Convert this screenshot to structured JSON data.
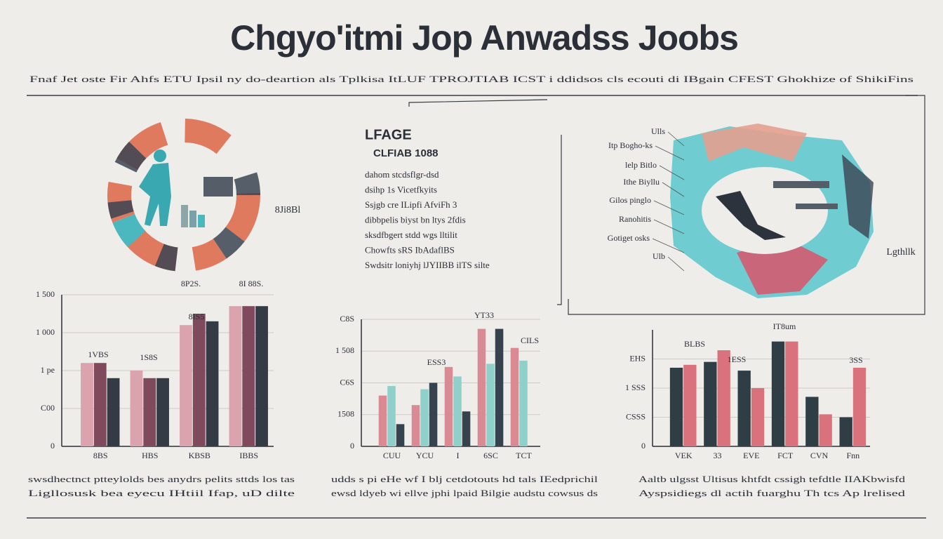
{
  "header": {
    "title": "Chgyo'itmi Jop Anwadss Joobs",
    "subtitle": "Fnaf Jet oste Fir Ahfs ETU Ipsil ny do-deartion als Tplkisa ItLUF TPROJTIAB ICST i ddidsos cls ecouti di IBgain CFEST Ghokhize of ShikiFins"
  },
  "text_block": {
    "heading": "LFAGE",
    "subheading": "CLFIAB 1088",
    "lines": [
      "dahom stcdsflgr-dsd",
      "dsihp 1s Vicetfkyits",
      "Ssjgb cre ILipfi AfviFh 3",
      "dibbpelis biyst bn ltys 2fdis",
      "sksdfbgert stdd wgs lltilit",
      "Chowfts sRS IbAdaflBS",
      "Swdsitr loniyhj lJYIIBB ilTS silte"
    ]
  },
  "illustration": {
    "label": "8Ji8Bl"
  },
  "diagram": {
    "labels": [
      "Ulls",
      "Itp Bogho-ks",
      "lelp Bitlo",
      "Ithe Biyllu",
      "Gilos pinglo",
      "Ranohitis",
      "Gotiget osks",
      "Ulb"
    ],
    "side_label": "Lgthllk"
  },
  "chart_data": [
    {
      "type": "bar",
      "annotations": [
        "8P2S.",
        "8I 88S.",
        "1VBS",
        "1S8S",
        "8IS5"
      ],
      "categories": [
        "8BS",
        "HBS",
        "KBSB",
        "IBBS"
      ],
      "series": [
        {
          "color": "#dba3ad",
          "values": [
            2.2,
            2.0,
            3.2,
            3.7
          ]
        },
        {
          "color": "#7e4a5c",
          "values": [
            2.2,
            1.8,
            3.5,
            3.7
          ]
        },
        {
          "color": "#343b45",
          "values": [
            1.8,
            1.8,
            3.3,
            3.7
          ]
        }
      ],
      "ylim": [
        0,
        4
      ],
      "yticks": [
        0,
        {
          "value": 1,
          "label": "C00"
        },
        {
          "value": 2,
          "label": "1 pe"
        },
        {
          "value": 3,
          "label": "1 000"
        },
        {
          "value": 4,
          "label": "1 500"
        }
      ],
      "grid": true
    },
    {
      "type": "bar",
      "annotations": [
        "YT33",
        "ESS3",
        "CILS"
      ],
      "categories": [
        "CUU",
        "YCU",
        "I",
        "6SC",
        "TCT"
      ],
      "series": [
        {
          "color": "#d98a93",
          "values": [
            1.6,
            1.3,
            2.5,
            3.7,
            3.1
          ]
        },
        {
          "color": "#8fd0ca",
          "values": [
            1.9,
            1.8,
            2.2,
            2.6,
            2.7
          ]
        },
        {
          "color": "#36424d",
          "values": [
            0.7,
            2.0,
            1.1,
            3.7,
            null
          ]
        }
      ],
      "ylim": [
        0,
        4
      ],
      "yticks": [
        0,
        {
          "value": 1,
          "label": "1508"
        },
        {
          "value": 2,
          "label": "C6S"
        },
        {
          "value": 3,
          "label": "1 508"
        },
        {
          "value": 4,
          "label": "C8S"
        }
      ],
      "grid": true
    },
    {
      "type": "bar",
      "annotations": [
        "IT8um",
        "BLBS",
        "1ESS",
        "3SS"
      ],
      "categories": [
        "VEK",
        "33",
        "EVE",
        "FCT",
        "CVN",
        "Fnn"
      ],
      "series": [
        {
          "color": "#2f3d44",
          "values": [
            2.7,
            2.9,
            2.6,
            3.6,
            1.7,
            1.0
          ]
        },
        {
          "color": "#d9727c",
          "values": [
            2.8,
            3.3,
            2.0,
            3.6,
            1.1,
            2.7
          ]
        }
      ],
      "ylim": [
        0,
        4
      ],
      "yticks": [
        0,
        {
          "value": 1,
          "label": "CSSS"
        },
        {
          "value": 2,
          "label": "1 SSS"
        },
        {
          "value": 3,
          "label": "EHS"
        }
      ],
      "grid": true
    }
  ],
  "captions": [
    [
      "swsdhectnct ptteylolds bes anydrs pelits sttds los tas",
      "Ligllosusk bea eyecu IHtiil Ifap, uD dilte"
    ],
    [
      "udds s pi eHe wf I blj cetdotouts hd tals IEedprichil",
      "ewsd ldyeb wi ellve jphi lpaid Bilgie audstu cowsus ds"
    ],
    [
      "Aaltb ulgsst Ultisus khtfdt cssigh tefdtle IIAKbwisfd",
      "Ayspsidiegs dl actih fuarghu Th tcs Ap lrelised"
    ]
  ]
}
